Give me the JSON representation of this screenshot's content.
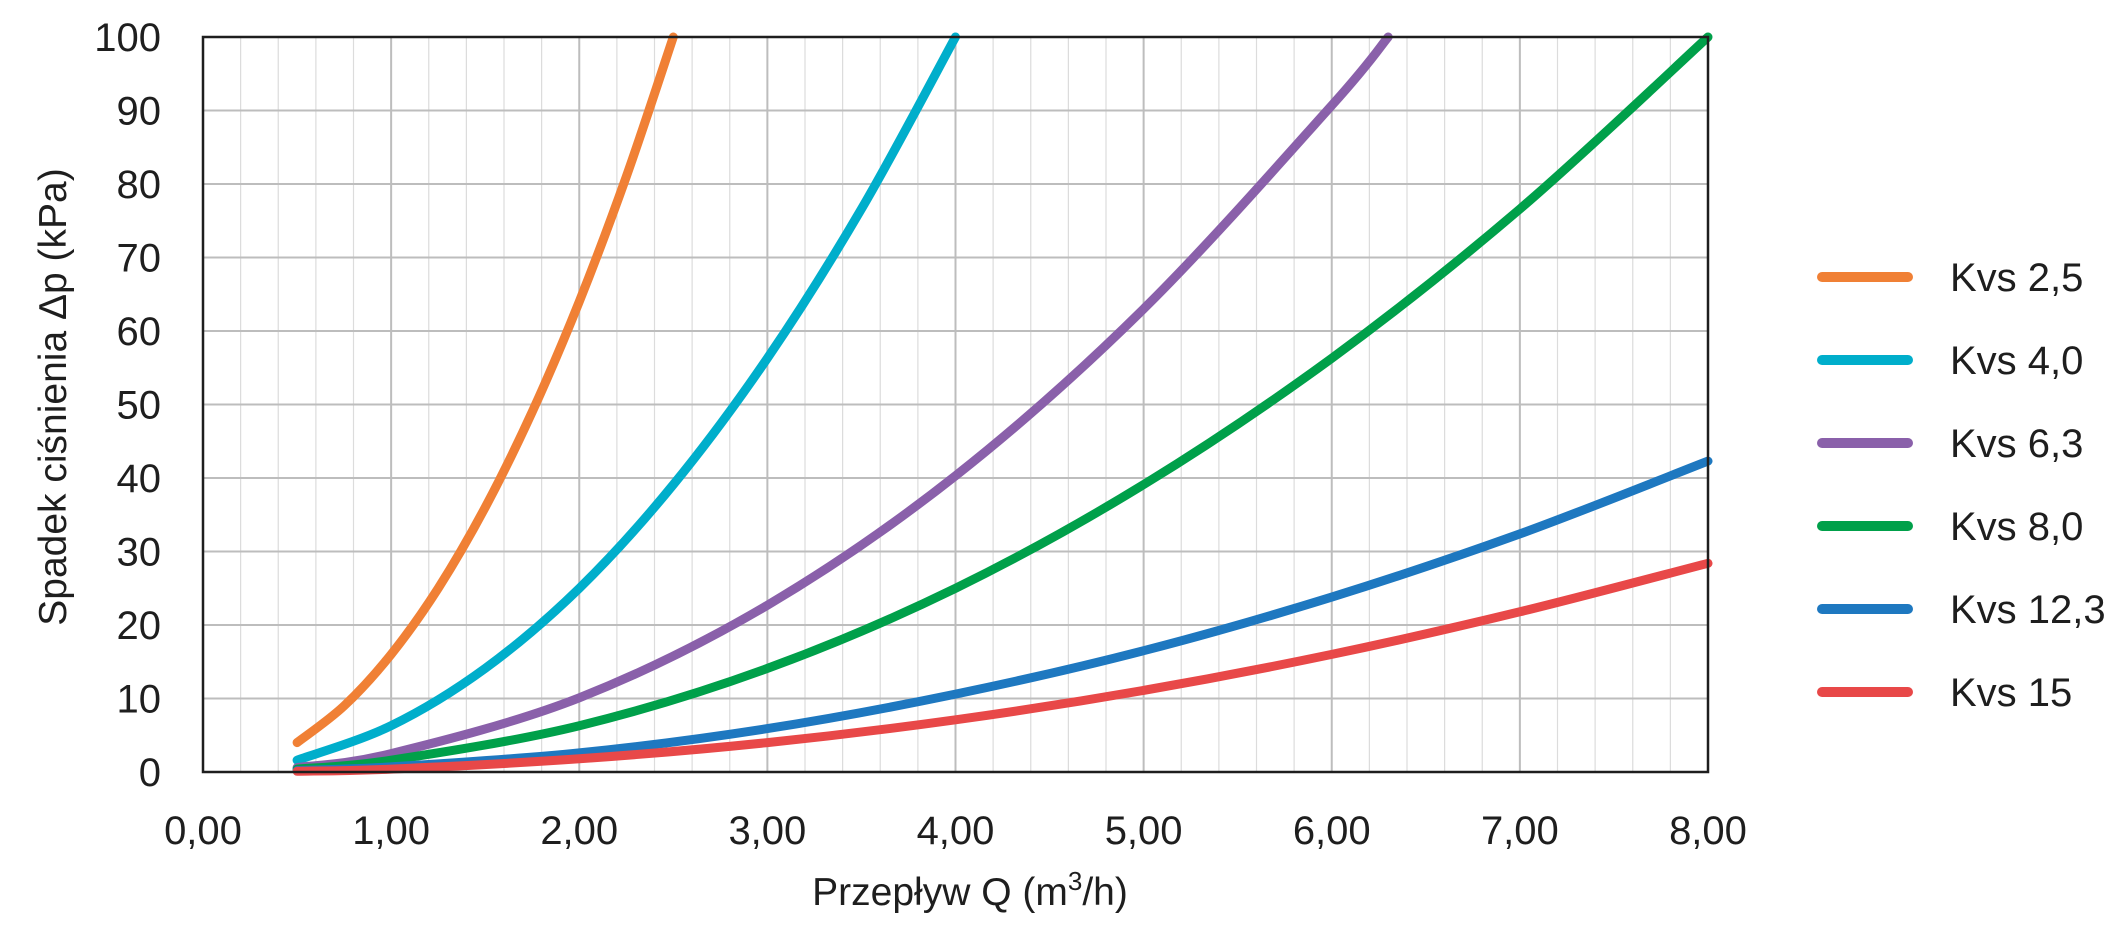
{
  "chart_data": {
    "type": "line",
    "xlabel": "Przepływ Q (m³/h)",
    "xlabel_parts": {
      "pre": "Przepływ Q (m",
      "sup": "3",
      "post": "/h)"
    },
    "ylabel": "Spadek ciśnienia Δp (kPa)",
    "xlim": [
      0,
      8
    ],
    "ylim": [
      0,
      100
    ],
    "x_ticks": [
      0,
      1,
      2,
      3,
      4,
      5,
      6,
      7,
      8
    ],
    "x_tick_labels": [
      "0,00",
      "1,00",
      "2,00",
      "3,00",
      "4,00",
      "5,00",
      "6,00",
      "7,00",
      "8,00"
    ],
    "y_ticks": [
      0,
      10,
      20,
      30,
      40,
      50,
      60,
      70,
      80,
      90,
      100
    ],
    "y_tick_labels": [
      "0",
      "10",
      "20",
      "30",
      "40",
      "50",
      "60",
      "70",
      "80",
      "90",
      "100"
    ],
    "minor_x_step": 0.2,
    "grid": true,
    "legend_position": "right",
    "series": [
      {
        "name": "Kvs 2,5",
        "color": "#F08035",
        "x": [
          0.5,
          0.75,
          1.0,
          1.25,
          1.5,
          1.75,
          2.0,
          2.25,
          2.5
        ],
        "y": [
          4,
          9,
          16,
          25,
          36,
          49,
          64,
          81,
          100
        ]
      },
      {
        "name": "Kvs 4,0",
        "color": "#00AECB",
        "x": [
          0.5,
          1.0,
          1.5,
          2.0,
          2.5,
          3.0,
          3.5,
          4.0
        ],
        "y": [
          1.6,
          6.3,
          14.1,
          25,
          39.1,
          56.3,
          76.6,
          100
        ]
      },
      {
        "name": "Kvs 6,3",
        "color": "#8A60AA",
        "x": [
          0.5,
          1.0,
          2.0,
          3.0,
          4.0,
          5.0,
          6.0,
          6.3
        ],
        "y": [
          0.6,
          2.5,
          10.1,
          22.7,
          40.3,
          63,
          90.7,
          100
        ]
      },
      {
        "name": "Kvs 8,0",
        "color": "#00A04A",
        "x": [
          0.5,
          1.0,
          2.0,
          3.0,
          4.0,
          5.0,
          6.0,
          7.0,
          8.0
        ],
        "y": [
          0.4,
          1.6,
          6.3,
          14.1,
          25,
          39.1,
          56.3,
          76.6,
          100
        ]
      },
      {
        "name": "Kvs 12,3",
        "color": "#1E78C0",
        "x": [
          0.5,
          1.0,
          2.0,
          3.0,
          4.0,
          5.0,
          6.0,
          7.0,
          8.0
        ],
        "y": [
          0.2,
          0.7,
          2.6,
          5.9,
          10.6,
          16.5,
          23.8,
          32.4,
          42.3
        ]
      },
      {
        "name": "Kvs 15",
        "color": "#E84848",
        "x": [
          0.5,
          1.0,
          2.0,
          3.0,
          4.0,
          5.0,
          6.0,
          7.0,
          8.0
        ],
        "y": [
          0.1,
          0.4,
          1.8,
          4,
          7.1,
          11.1,
          16,
          21.8,
          28.4
        ]
      }
    ]
  },
  "colors": {
    "grid_major": "#BDBDBD",
    "grid_minor": "#DCDCDC",
    "axis": "#1E1E1E",
    "text": "#1E1E1E"
  }
}
